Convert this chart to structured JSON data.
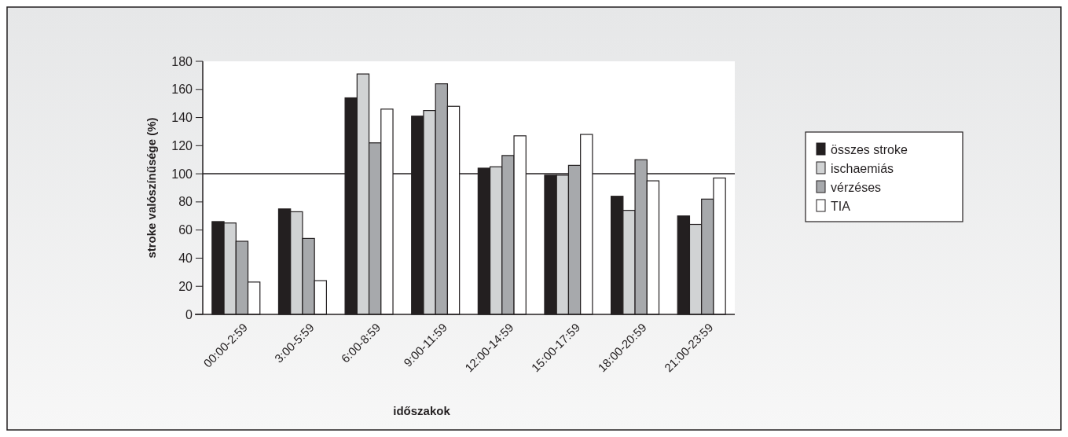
{
  "chart_data": {
    "type": "bar",
    "xlabel": "időszakok",
    "ylabel": "stroke valószínűsége (%)",
    "categories": [
      "00:00-2:59",
      "3:00-5:59",
      "6:00-8:59",
      "9:00-11:59",
      "12:00-14:59",
      "15:00-17:59",
      "18:00-20:59",
      "21:00-23:59"
    ],
    "series": [
      {
        "name": "összes stroke",
        "color": "#231f20",
        "values": [
          66,
          75,
          154,
          141,
          104,
          99,
          84,
          70
        ]
      },
      {
        "name": "ischaemiás",
        "color": "#d1d3d4",
        "values": [
          65,
          73,
          171,
          145,
          105,
          99,
          74,
          64
        ]
      },
      {
        "name": "vérzéses",
        "color": "#a7a9ac",
        "values": [
          52,
          54,
          122,
          164,
          113,
          106,
          110,
          82
        ]
      },
      {
        "name": "TIA",
        "color": "#ffffff",
        "values": [
          23,
          24,
          146,
          148,
          127,
          128,
          95,
          97
        ]
      }
    ],
    "ylim": [
      0,
      180
    ],
    "yticks": [
      0,
      20,
      40,
      60,
      80,
      100,
      120,
      140,
      160,
      180
    ],
    "ref_lines": [
      {
        "axis": "y",
        "value": 100,
        "color": "#231f20"
      }
    ],
    "grid": false,
    "legend": "right"
  }
}
